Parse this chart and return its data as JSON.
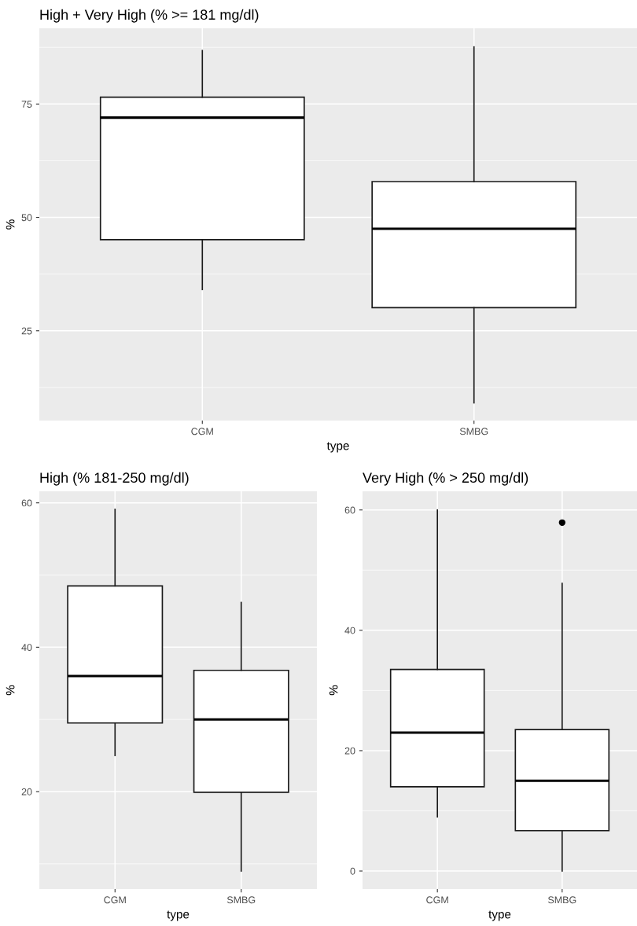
{
  "chart_data": [
    {
      "type": "box",
      "title": "High + Very High (% >= 181 mg/dl)",
      "xlabel": "type",
      "ylabel": "%",
      "categories": [
        "CGM",
        "SMBG"
      ],
      "boxes": [
        {
          "low": 34.1,
          "q1": 45.1,
          "median": 72.0,
          "q3": 76.5,
          "high": 86.8
        },
        {
          "low": 9.1,
          "q1": 30.1,
          "median": 47.5,
          "q3": 57.9,
          "high": 87.6
        }
      ],
      "ylim": [
        5.2,
        91.7
      ],
      "yticks": [
        25,
        50,
        75
      ],
      "grid": true
    },
    {
      "type": "box",
      "title": "High (% 181-250 mg/dl)",
      "xlabel": "type",
      "ylabel": "%",
      "categories": [
        "CGM",
        "SMBG"
      ],
      "boxes": [
        {
          "low": 25.0,
          "q1": 29.5,
          "median": 36.0,
          "q3": 48.5,
          "high": 59.1
        },
        {
          "low": 9.0,
          "q1": 19.9,
          "median": 30.0,
          "q3": 36.8,
          "high": 46.2
        }
      ],
      "ylim": [
        6.5,
        61.6
      ],
      "yticks": [
        20,
        40,
        60
      ],
      "grid": true
    },
    {
      "type": "box",
      "title": "Very High (% > 250 mg/dl)",
      "xlabel": "type",
      "ylabel": "%",
      "categories": [
        "CGM",
        "SMBG"
      ],
      "boxes": [
        {
          "low": 9.0,
          "q1": 14.0,
          "median": 23.0,
          "q3": 33.5,
          "high": 60.0
        },
        {
          "low": 0,
          "q1": 6.7,
          "median": 15.0,
          "q3": 23.5,
          "high": 47.8,
          "outliers": [
            57.9
          ]
        }
      ],
      "ylim": [
        -3.0,
        63.1
      ],
      "yticks": [
        0,
        20,
        40,
        60
      ],
      "grid": true
    }
  ]
}
